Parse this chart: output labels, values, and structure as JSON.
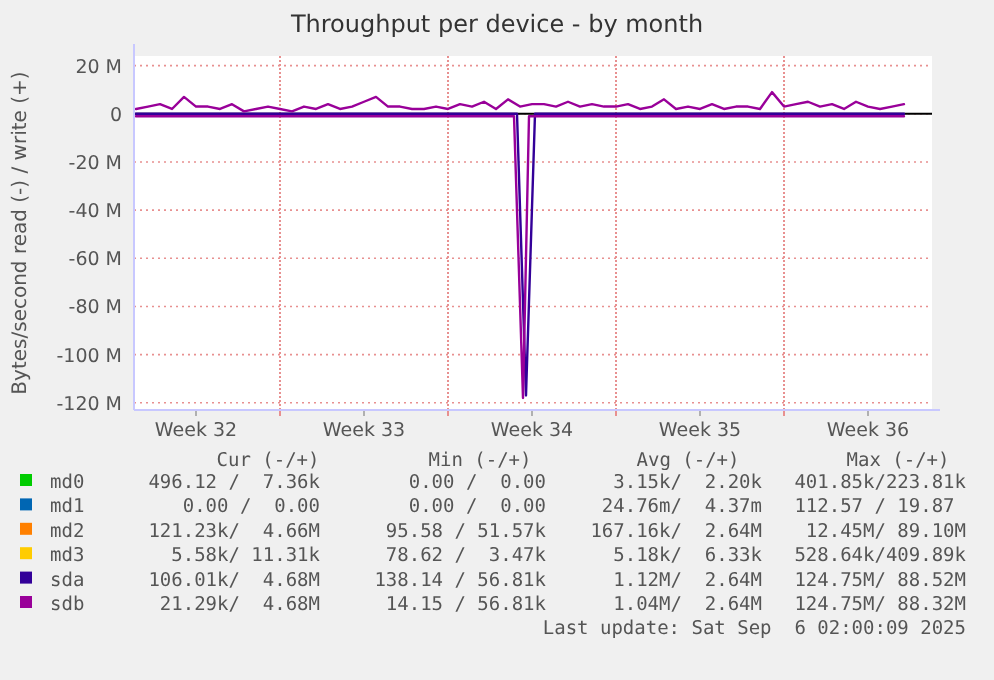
{
  "chart_data": {
    "type": "line",
    "title": "Throughput per device - by month",
    "ylabel": "Bytes/second read (-) / write (+)",
    "x": [
      "2025-08-05T00:00",
      "2025-08-05T12:00",
      "2025-08-06T00:00",
      "2025-08-06T12:00",
      "2025-08-07T00:00",
      "2025-08-07T12:00",
      "2025-08-08T00:00",
      "2025-08-08T12:00",
      "2025-08-09T00:00",
      "2025-08-09T12:00",
      "2025-08-10T00:00",
      "2025-08-10T12:00",
      "2025-08-11T00:00",
      "2025-08-11T12:00",
      "2025-08-12T00:00",
      "2025-08-12T12:00",
      "2025-08-13T00:00",
      "2025-08-13T12:00",
      "2025-08-14T00:00",
      "2025-08-14T12:00",
      "2025-08-15T00:00",
      "2025-08-15T12:00",
      "2025-08-16T00:00",
      "2025-08-16T12:00",
      "2025-08-17T00:00",
      "2025-08-17T12:00",
      "2025-08-18T00:00",
      "2025-08-18T12:00",
      "2025-08-19T00:00",
      "2025-08-19T12:00",
      "2025-08-20T00:00",
      "2025-08-20T12:00",
      "2025-08-21T00:00",
      "2025-08-21T12:00",
      "2025-08-22T00:00",
      "2025-08-22T12:00",
      "2025-08-23T00:00",
      "2025-08-23T12:00",
      "2025-08-24T00:00",
      "2025-08-24T12:00",
      "2025-08-25T00:00",
      "2025-08-25T12:00",
      "2025-08-26T00:00",
      "2025-08-26T12:00",
      "2025-08-27T00:00",
      "2025-08-27T12:00",
      "2025-08-28T00:00",
      "2025-08-28T12:00",
      "2025-08-29T00:00",
      "2025-08-29T12:00",
      "2025-08-30T00:00",
      "2025-08-30T12:00",
      "2025-08-31T00:00",
      "2025-08-31T12:00",
      "2025-09-01T00:00",
      "2025-09-01T12:00",
      "2025-09-02T00:00",
      "2025-09-02T12:00",
      "2025-09-03T00:00",
      "2025-09-03T12:00",
      "2025-09-04T00:00",
      "2025-09-04T12:00",
      "2025-09-05T00:00",
      "2025-09-05T12:00",
      "2025-09-06T00:00"
    ],
    "series": [
      {
        "name": "md0",
        "color": "#00cc00",
        "values": [
          null,
          null,
          null,
          null,
          null,
          null,
          null,
          null,
          null,
          null,
          null,
          null,
          null,
          null,
          null,
          null,
          null,
          null,
          null,
          null,
          null,
          null,
          null,
          null,
          null,
          null,
          null,
          null,
          null,
          null,
          null,
          null,
          null,
          null,
          null,
          null,
          null,
          null,
          null,
          null,
          null,
          null,
          null,
          null,
          null,
          null,
          null,
          null,
          null,
          null,
          null,
          null,
          null,
          null,
          null,
          null,
          null,
          null,
          null,
          null,
          null,
          null,
          null,
          null,
          null
        ]
      },
      {
        "name": "md1",
        "color": "#0066b3",
        "values": [
          null,
          null,
          null,
          null,
          null,
          null,
          null,
          null,
          null,
          null,
          null,
          null,
          null,
          null,
          null,
          null,
          null,
          null,
          null,
          null,
          null,
          null,
          null,
          null,
          null,
          null,
          null,
          null,
          null,
          null,
          null,
          null,
          null,
          null,
          null,
          null,
          null,
          null,
          null,
          null,
          null,
          null,
          null,
          null,
          null,
          null,
          null,
          null,
          null,
          null,
          null,
          null,
          null,
          null,
          null,
          null,
          null,
          null,
          null,
          null,
          null,
          null,
          null,
          null,
          null
        ]
      },
      {
        "name": "md2",
        "color": "#ff8000",
        "values": [
          null,
          null,
          null,
          null,
          null,
          null,
          null,
          null,
          null,
          null,
          null,
          null,
          null,
          null,
          null,
          null,
          null,
          null,
          null,
          null,
          null,
          null,
          null,
          null,
          null,
          null,
          null,
          null,
          null,
          null,
          null,
          null,
          null,
          null,
          null,
          null,
          null,
          null,
          null,
          null,
          null,
          null,
          null,
          null,
          null,
          null,
          null,
          null,
          null,
          null,
          null,
          null,
          null,
          null,
          null,
          null,
          null,
          null,
          null,
          null,
          null,
          null,
          null,
          null,
          null
        ]
      },
      {
        "name": "md3",
        "color": "#ffcc00",
        "values": [
          null,
          null,
          null,
          null,
          null,
          null,
          null,
          null,
          null,
          null,
          null,
          null,
          null,
          null,
          null,
          null,
          null,
          null,
          null,
          null,
          null,
          null,
          null,
          null,
          null,
          null,
          null,
          null,
          null,
          null,
          null,
          null,
          null,
          null,
          null,
          null,
          null,
          null,
          null,
          null,
          null,
          null,
          null,
          null,
          null,
          null,
          null,
          null,
          null,
          null,
          null,
          null,
          null,
          null,
          null,
          null,
          null,
          null,
          null,
          null,
          null,
          null,
          null,
          null,
          null
        ]
      },
      {
        "name": "sda",
        "color": "#330099",
        "x": [
          "2025-08-05T00:00",
          "2025-08-20T21:00",
          "2025-08-21T06:00",
          "2025-08-21T15:00",
          "2025-09-06T00:00"
        ],
        "values": [
          0,
          0,
          -117,
          0,
          0
        ]
      },
      {
        "name": "sdb",
        "color": "#990099",
        "values": [
          2,
          3,
          4,
          2,
          7,
          3,
          3,
          2,
          4,
          1,
          2,
          3,
          2,
          1,
          3,
          2,
          4,
          2,
          3,
          5,
          7,
          3,
          3,
          2,
          2,
          3,
          2,
          4,
          3,
          5,
          2,
          6,
          3,
          4,
          4,
          3,
          5,
          3,
          4,
          3,
          3,
          4,
          2,
          3,
          6,
          2,
          3,
          2,
          4,
          2,
          3,
          3,
          2,
          9,
          3,
          4,
          5,
          3,
          4,
          2,
          5,
          3,
          2,
          3,
          4
        ]
      },
      {
        "color": "#990099",
        "x": [
          "2025-08-05T00:00",
          "2025-08-20T18:00",
          "2025-08-21T03:00",
          "2025-08-21T09:00",
          "2025-09-06T00:00"
        ],
        "values": [
          -1,
          -1,
          -118,
          -1,
          -1
        ]
      }
    ],
    "xlim": [
      "2025-08-04T22:00",
      "2025-09-07T04:00"
    ],
    "xticks": [
      {
        "value": "2025-08-07T12:00",
        "label": "Week 32"
      },
      {
        "value": "2025-08-11T00:00",
        "label": null
      },
      {
        "value": "2025-08-14T12:00",
        "label": "Week 33"
      },
      {
        "value": "2025-08-18T00:00",
        "label": null
      },
      {
        "value": "2025-08-21T12:00",
        "label": "Week 34"
      },
      {
        "value": "2025-08-25T00:00",
        "label": null
      },
      {
        "value": "2025-08-28T12:00",
        "label": "Week 35"
      },
      {
        "value": "2025-09-01T00:00",
        "label": null
      },
      {
        "value": "2025-09-04T12:00",
        "label": "Week 36"
      }
    ],
    "ylim": [
      -123,
      24
    ],
    "yticks": [
      {
        "value": 20,
        "label": "20 M"
      },
      0,
      {
        "value": -20,
        "label": "-20 M"
      },
      {
        "value": -40,
        "label": "-40 M"
      },
      {
        "value": -60,
        "label": "-60 M"
      },
      {
        "value": -80,
        "label": "-80 M"
      },
      {
        "value": -100,
        "label": "-100 M"
      },
      {
        "value": -120,
        "label": "-120 M"
      }
    ],
    "grid": true,
    "legend": "bottom",
    "ref_lines": [
      {
        "axis": "y",
        "value": 0,
        "color": "#000000"
      }
    ],
    "annotations": [
      "Cur (-/+)",
      "Min (-/+)",
      "Avg (-/+)",
      "Max (-/+)",
      "496.12 /  7.36k",
      "0.00 /  0.00",
      "3.15k/  2.20k",
      "401.85k/223.81k",
      "0.00 /  0.00",
      "0.00 /  0.00",
      "24.76m/  4.37m",
      "112.57 / 19.87 ",
      "121.23k/  4.66M",
      "95.58 / 51.57k",
      "167.16k/  2.64M",
      "12.45M/ 89.10M",
      "5.58k/ 11.31k",
      "78.62 /  3.47k",
      "5.18k/  6.33k",
      "528.64k/409.89k",
      "106.01k/  4.68M",
      "138.14 / 56.81k",
      "1.12M/  2.64M",
      "124.75M/ 88.52M",
      "21.29k/  4.68M",
      "14.15 / 56.81k",
      "1.04M/  2.64M",
      "124.75M/ 88.32M",
      "Last update: Sat Sep  6 02:00:09 2025"
    ]
  }
}
